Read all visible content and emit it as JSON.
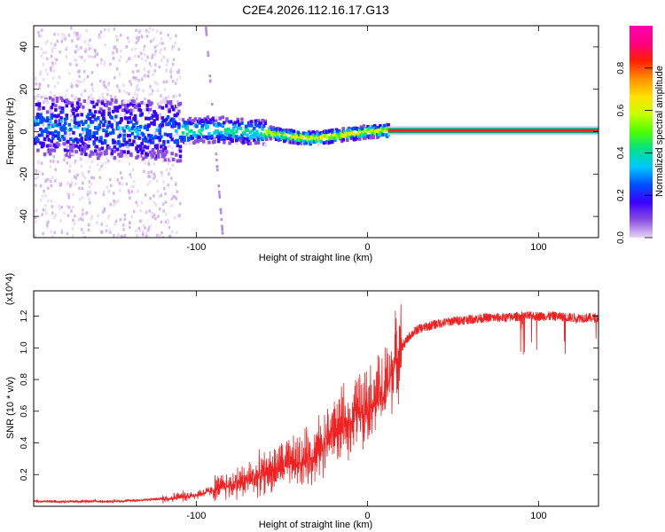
{
  "title": "C2E4.2026.112.16.17.G13",
  "chart_data": [
    {
      "type": "heatmap",
      "title": "",
      "xlabel": "Height of straight line (km)",
      "ylabel": "Frequency (Hz)",
      "xlim": [
        -195,
        135
      ],
      "ylim": [
        -50,
        50
      ],
      "xticks": [
        -100,
        0,
        100
      ],
      "yticks": [
        -40,
        -20,
        0,
        20,
        40
      ],
      "colorbar": {
        "label": "Normalized spectral amplitude",
        "range": [
          0.0,
          1.0
        ],
        "ticks": [
          "0.0",
          "0.2",
          "0.4",
          "0.6",
          "0.8"
        ],
        "colors": [
          "#e6d5f5",
          "#8a4fe0",
          "#3a00ff",
          "#0050ff",
          "#00c8ff",
          "#00e08a",
          "#4cff00",
          "#c8ff00",
          "#ffe000",
          "#ff9000",
          "#ff2000",
          "#ff0080",
          "#ff00b0"
        ]
      },
      "ridge": {
        "description_points": [
          [
            -195,
            3
          ],
          [
            -170,
            2
          ],
          [
            -150,
            1
          ],
          [
            -130,
            1
          ],
          [
            -110,
            0
          ],
          [
            -90,
            1
          ],
          [
            -70,
            0
          ],
          [
            -55,
            -1
          ],
          [
            -40,
            -3
          ],
          [
            -30,
            -3
          ],
          [
            -20,
            -2
          ],
          [
            -10,
            -1
          ],
          [
            0,
            0
          ],
          [
            10,
            0.5
          ],
          [
            20,
            0.5
          ],
          [
            135,
            0.5
          ]
        ],
        "stable_from_km": 12,
        "stable_frequency": 0.5
      }
    },
    {
      "type": "line",
      "title": "",
      "xlabel": "Height of straight line (km)",
      "ylabel": "SNR (10 * v/v)",
      "scale_note": "(x10^4)",
      "xlim": [
        -195,
        135
      ],
      "ylim": [
        0,
        1.36
      ],
      "xticks": [
        -100,
        0,
        100
      ],
      "yticks": [
        "0.2",
        "0.4",
        "0.6",
        "0.8",
        "1.0",
        "1.2"
      ],
      "series": [
        {
          "name": "SNR",
          "color": "#ee2222",
          "x": [
            -195,
            -170,
            -150,
            -130,
            -115,
            -100,
            -90,
            -80,
            -70,
            -60,
            -50,
            -40,
            -30,
            -25,
            -20,
            -15,
            -10,
            -5,
            0,
            5,
            10,
            15,
            20,
            25,
            30,
            40,
            50,
            60,
            70,
            80,
            90,
            100,
            110,
            120,
            135
          ],
          "values": [
            0.03,
            0.03,
            0.03,
            0.04,
            0.05,
            0.07,
            0.1,
            0.13,
            0.16,
            0.2,
            0.24,
            0.27,
            0.32,
            0.4,
            0.46,
            0.48,
            0.52,
            0.6,
            0.64,
            0.66,
            0.7,
            0.86,
            1.0,
            1.08,
            1.12,
            1.15,
            1.17,
            1.18,
            1.19,
            1.19,
            1.2,
            1.2,
            1.2,
            1.19,
            1.19
          ]
        }
      ]
    }
  ]
}
